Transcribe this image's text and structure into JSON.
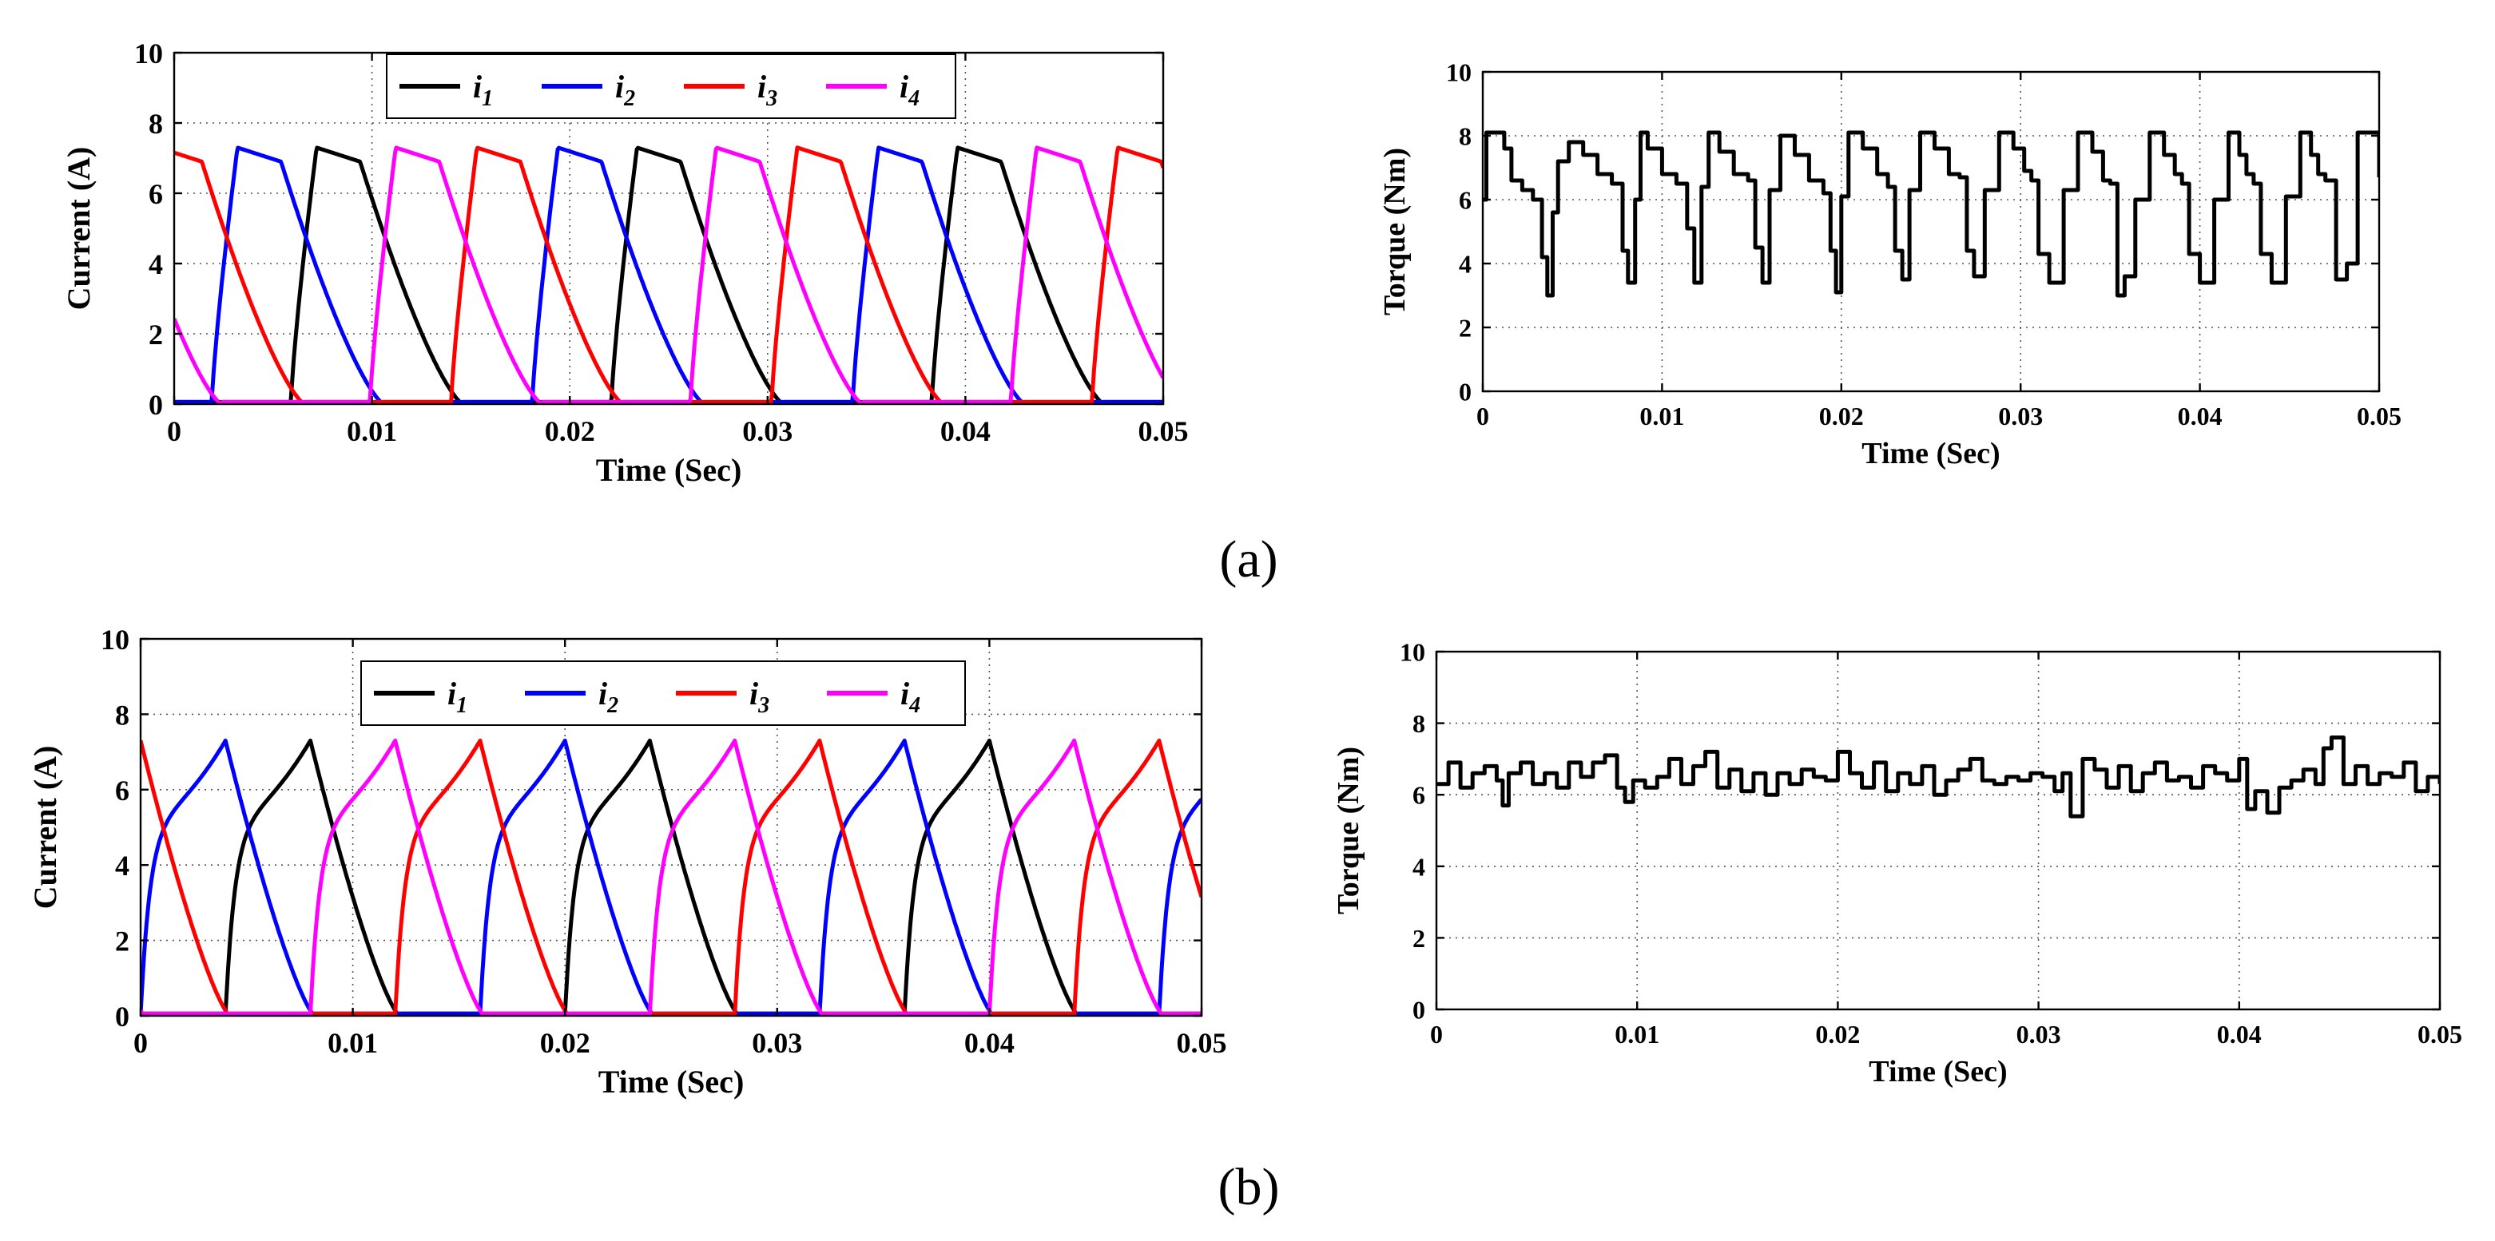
{
  "panel_labels": [
    {
      "text": "(a)",
      "letter": "a"
    },
    {
      "text": "(b)",
      "letter": "b"
    }
  ],
  "chart_data": [
    {
      "id": "a-current",
      "type": "line",
      "panel": "a",
      "xlabel": "Time (Sec)",
      "ylabel": "Current (A)",
      "xlim": [
        0,
        0.05
      ],
      "ylim": [
        0,
        10
      ],
      "xticks": [
        0,
        0.01,
        0.02,
        0.03,
        0.04,
        0.05
      ],
      "xtick_labels": [
        "0",
        "0.01",
        "0.02",
        "0.03",
        "0.04",
        "0.05"
      ],
      "yticks": [
        0,
        2,
        4,
        6,
        8,
        10
      ],
      "ytick_labels": [
        "0",
        "2",
        "4",
        "6",
        "8",
        "10"
      ],
      "grid": "dotted",
      "legend": {
        "placement": "top",
        "entries": [
          {
            "base": "i",
            "sub": "1",
            "color": "#000000"
          },
          {
            "base": "i",
            "sub": "2",
            "color": "#0000ff"
          },
          {
            "base": "i",
            "sub": "3",
            "color": "#ff0000"
          },
          {
            "base": "i",
            "sub": "4",
            "color": "#ff00ff"
          }
        ]
      },
      "waveform": {
        "period": 0.0162,
        "rise_time": 0.0013,
        "peak": 7.3,
        "flat": 6.9,
        "flat_duration": 0.0022,
        "decay_time": 0.0052
      },
      "series": [
        {
          "name": "i1",
          "color": "#000000",
          "onsets": [
            -0.0103,
            0.0059,
            0.0221,
            0.0383,
            0.0545
          ]
        },
        {
          "name": "i2",
          "color": "#0000ff",
          "onsets": [
            -0.0143,
            0.0019,
            0.0181,
            0.0343,
            0.0505
          ]
        },
        {
          "name": "i3",
          "color": "#ff0000",
          "onsets": [
            -0.0021,
            0.014,
            0.0302,
            0.0464
          ]
        },
        {
          "name": "i4",
          "color": "#ff00ff",
          "onsets": [
            -0.0063,
            0.0099,
            0.0261,
            0.0423,
            0.0585
          ]
        }
      ]
    },
    {
      "id": "a-torque",
      "type": "line",
      "panel": "a",
      "xlabel": "Time (Sec)",
      "ylabel": "Torque (Nm)",
      "xlim": [
        0,
        0.05
      ],
      "ylim": [
        0,
        10
      ],
      "xticks": [
        0,
        0.01,
        0.02,
        0.03,
        0.04,
        0.05
      ],
      "xtick_labels": [
        "0",
        "0.01",
        "0.02",
        "0.03",
        "0.04",
        "0.05"
      ],
      "yticks": [
        0,
        2,
        4,
        6,
        8,
        10
      ],
      "ytick_labels": [
        "0",
        "2",
        "4",
        "6",
        "8",
        "10"
      ],
      "grid": "dotted",
      "series": [
        {
          "color": "#000000",
          "x": [
            0,
            0.0002,
            0.0006,
            0.0012,
            0.0016,
            0.0022,
            0.0028,
            0.0033,
            0.0036,
            0.0039,
            0.0042,
            0.0048,
            0.0056,
            0.0064,
            0.0072,
            0.0078,
            0.0081,
            0.0085,
            0.0088,
            0.0092,
            0.01,
            0.0108,
            0.0114,
            0.0118,
            0.0122,
            0.0126,
            0.0132,
            0.014,
            0.0148,
            0.0152,
            0.0156,
            0.016,
            0.0166,
            0.0174,
            0.0182,
            0.019,
            0.0194,
            0.0197,
            0.02,
            0.0204,
            0.0212,
            0.022,
            0.0226,
            0.023,
            0.0234,
            0.0238,
            0.0244,
            0.0252,
            0.026,
            0.0266,
            0.027,
            0.0274,
            0.028,
            0.0288,
            0.0296,
            0.0302,
            0.0306,
            0.031,
            0.0316,
            0.0324,
            0.0332,
            0.034,
            0.0346,
            0.035,
            0.0354,
            0.0358,
            0.0364,
            0.0372,
            0.038,
            0.0386,
            0.039,
            0.0394,
            0.04,
            0.0408,
            0.0416,
            0.0422,
            0.0426,
            0.043,
            0.0434,
            0.044,
            0.0448,
            0.0456,
            0.0462,
            0.0466,
            0.047,
            0.0476,
            0.0482,
            0.0488,
            0.0494,
            0.05
          ],
          "y": [
            6.0,
            8.1,
            8.1,
            7.6,
            6.6,
            6.3,
            6.0,
            4.2,
            3.0,
            5.6,
            7.2,
            7.8,
            7.4,
            6.8,
            6.5,
            4.4,
            3.4,
            6.0,
            8.1,
            7.6,
            6.8,
            6.5,
            5.1,
            3.4,
            6.4,
            8.1,
            7.5,
            6.8,
            6.6,
            4.5,
            3.4,
            6.3,
            8.0,
            7.4,
            6.6,
            6.2,
            4.4,
            3.1,
            6.1,
            8.1,
            7.6,
            6.8,
            6.4,
            4.4,
            3.5,
            6.3,
            8.1,
            7.6,
            6.8,
            6.7,
            4.4,
            3.6,
            6.3,
            8.1,
            7.6,
            6.9,
            6.6,
            4.3,
            3.4,
            6.3,
            8.1,
            7.5,
            6.6,
            6.5,
            3.0,
            3.6,
            6.0,
            8.1,
            7.4,
            6.8,
            6.5,
            4.3,
            3.4,
            6.0,
            8.1,
            7.4,
            6.8,
            6.5,
            4.3,
            3.4,
            6.1,
            8.1,
            7.4,
            6.8,
            6.6,
            3.5,
            4.0,
            8.1,
            8.1,
            6.7
          ]
        }
      ]
    },
    {
      "id": "b-current",
      "type": "line",
      "panel": "b",
      "xlabel": "Time (Sec)",
      "ylabel": "Current (A)",
      "xlim": [
        0,
        0.05
      ],
      "ylim": [
        0,
        10
      ],
      "xticks": [
        0,
        0.01,
        0.02,
        0.03,
        0.04,
        0.05
      ],
      "xtick_labels": [
        "0",
        "0.01",
        "0.02",
        "0.03",
        "0.04",
        "0.05"
      ],
      "yticks": [
        0,
        2,
        4,
        6,
        8,
        10
      ],
      "ytick_labels": [
        "0",
        "2",
        "4",
        "6",
        "8",
        "10"
      ],
      "grid": "dotted",
      "legend": {
        "placement": "top",
        "entries": [
          {
            "base": "i",
            "sub": "1",
            "color": "#000000"
          },
          {
            "base": "i",
            "sub": "2",
            "color": "#0000ff"
          },
          {
            "base": "i",
            "sub": "3",
            "color": "#ff0000"
          },
          {
            "base": "i",
            "sub": "4",
            "color": "#ff00ff"
          }
        ]
      },
      "waveform": {
        "period": 0.016,
        "rise_time": 0.004,
        "knee": 5.2,
        "peak": 7.3,
        "decay_time": 0.0042
      },
      "series": [
        {
          "name": "i1",
          "color": "#000000",
          "onsets": [
            -0.012,
            0.004,
            0.02,
            0.036,
            0.052
          ]
        },
        {
          "name": "i2",
          "color": "#0000ff",
          "onsets": [
            0.0,
            0.016,
            0.032,
            0.048
          ]
        },
        {
          "name": "i3",
          "color": "#ff0000",
          "onsets": [
            -0.004,
            0.012,
            0.028,
            0.044
          ]
        },
        {
          "name": "i4",
          "color": "#ff00ff",
          "onsets": [
            -0.008,
            0.008,
            0.024,
            0.04
          ]
        }
      ]
    },
    {
      "id": "b-torque",
      "type": "line",
      "panel": "b",
      "xlabel": "Time (Sec)",
      "ylabel": "Torque (Nm)",
      "xlim": [
        0,
        0.05
      ],
      "ylim": [
        0,
        10
      ],
      "xticks": [
        0,
        0.01,
        0.02,
        0.03,
        0.04,
        0.05
      ],
      "xtick_labels": [
        "0",
        "0.01",
        "0.02",
        "0.03",
        "0.04",
        "0.05"
      ],
      "yticks": [
        0,
        2,
        4,
        6,
        8,
        10
      ],
      "ytick_labels": [
        "0",
        "2",
        "4",
        "6",
        "8",
        "10"
      ],
      "grid": "dotted",
      "series": [
        {
          "color": "#000000",
          "x": [
            0,
            0.0006,
            0.0012,
            0.0018,
            0.0024,
            0.003,
            0.0033,
            0.0036,
            0.0042,
            0.0048,
            0.0054,
            0.006,
            0.0066,
            0.0072,
            0.0078,
            0.0084,
            0.009,
            0.0094,
            0.0098,
            0.0104,
            0.011,
            0.0116,
            0.0122,
            0.0128,
            0.0134,
            0.014,
            0.0146,
            0.0152,
            0.0158,
            0.0164,
            0.017,
            0.0176,
            0.0182,
            0.0188,
            0.0194,
            0.02,
            0.0206,
            0.0212,
            0.0218,
            0.0224,
            0.023,
            0.0236,
            0.0242,
            0.0248,
            0.0254,
            0.026,
            0.0266,
            0.0272,
            0.0278,
            0.0284,
            0.029,
            0.0296,
            0.0302,
            0.0308,
            0.0312,
            0.0316,
            0.0322,
            0.0328,
            0.0334,
            0.034,
            0.0346,
            0.0352,
            0.0358,
            0.0364,
            0.037,
            0.0376,
            0.0382,
            0.0388,
            0.0394,
            0.04,
            0.0404,
            0.0408,
            0.0414,
            0.042,
            0.0426,
            0.0432,
            0.0438,
            0.0442,
            0.0446,
            0.0452,
            0.0458,
            0.0464,
            0.047,
            0.0476,
            0.0482,
            0.0488,
            0.0494,
            0.05
          ],
          "y": [
            6.3,
            6.9,
            6.2,
            6.6,
            6.8,
            6.4,
            5.7,
            6.6,
            6.9,
            6.3,
            6.6,
            6.2,
            6.9,
            6.5,
            6.9,
            7.1,
            6.2,
            5.8,
            6.4,
            6.2,
            6.5,
            7.0,
            6.3,
            6.8,
            7.2,
            6.2,
            6.7,
            6.1,
            6.6,
            6.0,
            6.6,
            6.3,
            6.7,
            6.5,
            6.4,
            7.2,
            6.6,
            6.2,
            6.9,
            6.1,
            6.6,
            6.3,
            6.8,
            6.0,
            6.4,
            6.7,
            7.0,
            6.4,
            6.3,
            6.5,
            6.4,
            6.6,
            6.5,
            6.1,
            6.6,
            5.4,
            7.0,
            6.7,
            6.2,
            6.8,
            6.1,
            6.6,
            6.9,
            6.4,
            6.5,
            6.2,
            6.8,
            6.6,
            6.4,
            7.0,
            5.6,
            6.1,
            5.5,
            6.2,
            6.4,
            6.7,
            6.3,
            7.3,
            7.6,
            6.3,
            6.8,
            6.3,
            6.6,
            6.5,
            6.9,
            6.1,
            6.5,
            6.3
          ]
        }
      ]
    }
  ]
}
